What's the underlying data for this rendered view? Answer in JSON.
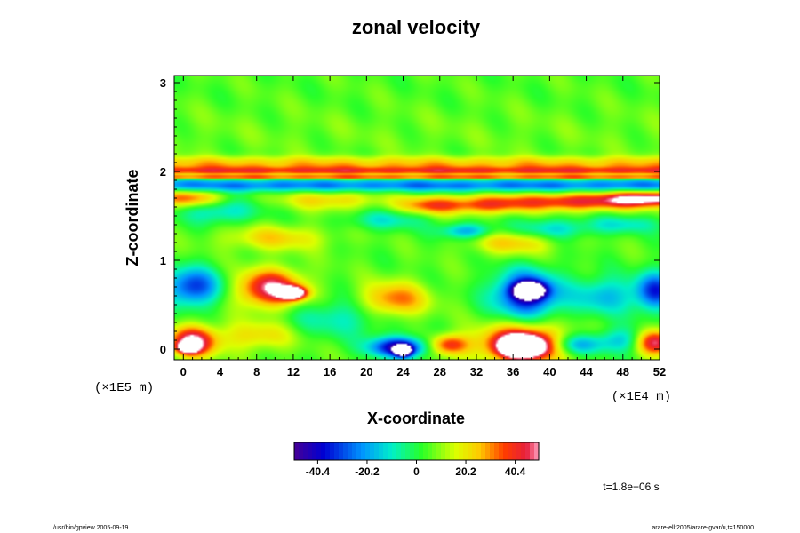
{
  "chart_data": {
    "type": "heatmap",
    "title": "zonal velocity",
    "xlabel": "X-coordinate",
    "ylabel": "Z-coordinate",
    "x_unit": "(×1E4 m)",
    "y_unit": "(×1E5 m)",
    "x_ticks": [
      0,
      4,
      8,
      12,
      16,
      20,
      24,
      28,
      32,
      36,
      40,
      44,
      48,
      52
    ],
    "y_ticks": [
      0,
      1,
      2,
      3
    ],
    "xlim": [
      -1,
      52
    ],
    "ylim": [
      -0.12,
      3.08
    ],
    "grid": false,
    "colorbar": {
      "ticks": [
        -40.4,
        -20.2,
        0,
        20.2,
        40.4
      ],
      "tick_labels": [
        "-40.4",
        "-20.2",
        "0",
        "20.2",
        "40.4"
      ],
      "range": [
        -50,
        50
      ]
    },
    "background_value": 5,
    "features": [
      {
        "x": 0,
        "z": 1.99,
        "sx": 999,
        "sz": 0.045,
        "value": 40
      },
      {
        "x": 0,
        "z": 1.935,
        "sx": 999,
        "sz": 0.02,
        "value": 60
      },
      {
        "x": 0,
        "z": 1.94,
        "sx": 999,
        "sz": 0.03,
        "value": -45
      },
      {
        "x": 26,
        "z": 1.84,
        "sx": 999,
        "sz": 0.05,
        "value": -30
      },
      {
        "x": 0,
        "z": 2.1,
        "sx": 999,
        "sz": 0.05,
        "value": 18
      },
      {
        "x": 0,
        "z": 2.45,
        "sx": 999,
        "sz": 0.2,
        "value": 2
      },
      {
        "x": 0.5,
        "z": 1.7,
        "sx": 2.5,
        "sz": 0.07,
        "value": 30
      },
      {
        "x": 4,
        "z": 1.55,
        "sx": 3,
        "sz": 0.1,
        "value": -18
      },
      {
        "x": 16,
        "z": 1.68,
        "sx": 4,
        "sz": 0.08,
        "value": 18
      },
      {
        "x": 27,
        "z": 1.62,
        "sx": 2.5,
        "sz": 0.07,
        "value": 28
      },
      {
        "x": 33,
        "z": 1.62,
        "sx": 3,
        "sz": 0.07,
        "value": 25
      },
      {
        "x": 43,
        "z": 1.66,
        "sx": 6,
        "sz": 0.07,
        "value": 38
      },
      {
        "x": 51,
        "z": 1.7,
        "sx": 3,
        "sz": 0.06,
        "value": 40
      },
      {
        "x": 22,
        "z": 1.45,
        "sx": 3,
        "sz": 0.08,
        "value": -15
      },
      {
        "x": 31,
        "z": 1.33,
        "sx": 2,
        "sz": 0.06,
        "value": -25
      },
      {
        "x": 40,
        "z": 1.35,
        "sx": 3,
        "sz": 0.08,
        "value": -18
      },
      {
        "x": 48,
        "z": 1.4,
        "sx": 3,
        "sz": 0.07,
        "value": -15
      },
      {
        "x": 10,
        "z": 1.25,
        "sx": 4,
        "sz": 0.1,
        "value": 18
      },
      {
        "x": 36,
        "z": 1.2,
        "sx": 3,
        "sz": 0.1,
        "value": 20
      },
      {
        "x": 1,
        "z": 0.7,
        "sx": 2.2,
        "sz": 0.15,
        "value": -38
      },
      {
        "x": 9.5,
        "z": 0.68,
        "sx": 2.5,
        "sz": 0.15,
        "value": 45
      },
      {
        "x": 12,
        "z": 0.63,
        "sx": 1,
        "sz": 0.05,
        "value": 60
      },
      {
        "x": 23,
        "z": 0.55,
        "sx": 2.5,
        "sz": 0.14,
        "value": 30
      },
      {
        "x": 37.5,
        "z": 0.62,
        "sx": 2.5,
        "sz": 0.18,
        "value": -48
      },
      {
        "x": 37.8,
        "z": 0.66,
        "sx": 1.1,
        "sz": 0.06,
        "value": -70
      },
      {
        "x": 51.5,
        "z": 0.65,
        "sx": 1.5,
        "sz": 0.15,
        "value": -38
      },
      {
        "x": 46,
        "z": 0.6,
        "sx": 2.5,
        "sz": 0.15,
        "value": -22
      },
      {
        "x": 17,
        "z": 0.35,
        "sx": 4,
        "sz": 0.15,
        "value": -15
      },
      {
        "x": 8,
        "z": 0.15,
        "sx": 3,
        "sz": 0.12,
        "value": 18
      },
      {
        "x": 1,
        "z": 0.08,
        "sx": 1.8,
        "sz": 0.12,
        "value": 48
      },
      {
        "x": 0.5,
        "z": 0.02,
        "sx": 0.7,
        "sz": 0.04,
        "value": 60
      },
      {
        "x": 23.5,
        "z": 0.02,
        "sx": 2.2,
        "sz": 0.08,
        "value": -50
      },
      {
        "x": 24,
        "z": -0.02,
        "sx": 0.6,
        "sz": 0.04,
        "value": -70
      },
      {
        "x": 29,
        "z": 0.05,
        "sx": 1.5,
        "sz": 0.08,
        "value": 35
      },
      {
        "x": 37,
        "z": 0.06,
        "sx": 3.2,
        "sz": 0.15,
        "value": 50
      },
      {
        "x": 37,
        "z": 0.02,
        "sx": 1.6,
        "sz": 0.08,
        "value": 60
      },
      {
        "x": 43,
        "z": 0.05,
        "sx": 2,
        "sz": 0.08,
        "value": -25
      },
      {
        "x": 48,
        "z": 0.1,
        "sx": 2,
        "sz": 0.1,
        "value": -20
      },
      {
        "x": 51.5,
        "z": 0.08,
        "sx": 1.5,
        "sz": 0.1,
        "value": 45
      }
    ]
  },
  "time_label": "t=1.8e+06 s",
  "footer_left": "/usr/bin/gpview 2005-09-19",
  "footer_right": "arare-ell:2005/arare-gvar/u,t=150000"
}
